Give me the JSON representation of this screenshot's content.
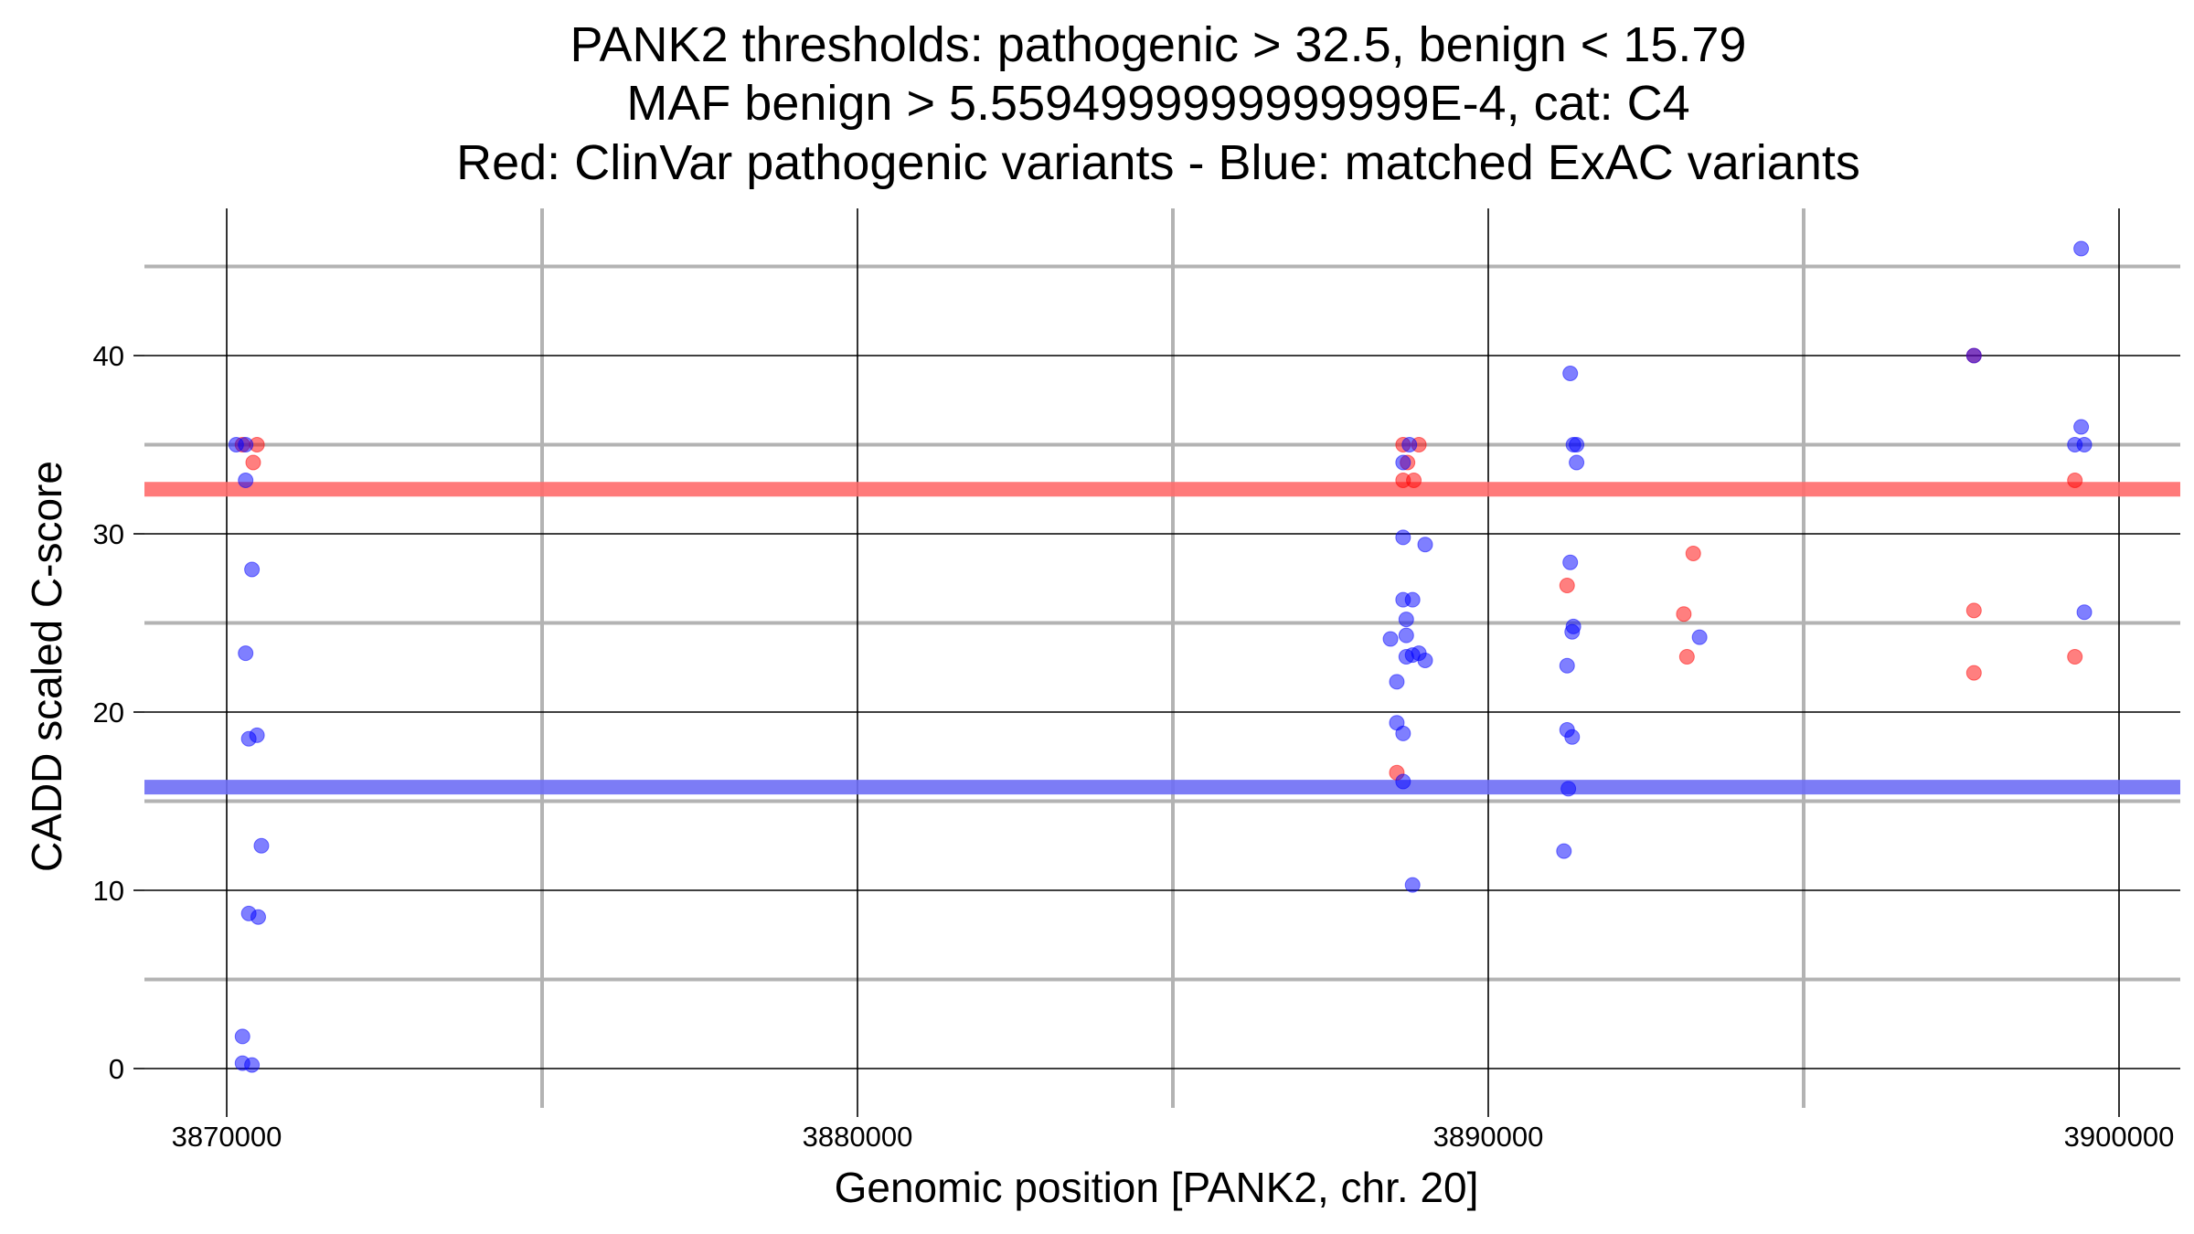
{
  "chart_data": {
    "type": "scatter",
    "title": [
      "PANK2 thresholds: pathogenic > 32.5, benign < 15.79",
      "MAF benign > 5.5594999999999999E-4, cat: C4",
      "Red: ClinVar pathogenic variants - Blue: matched ExAC variants"
    ],
    "xlabel": "Genomic position [PANK2, chr. 20]",
    "ylabel": "CADD scaled C-score",
    "xlim": [
      3869000,
      3901000
    ],
    "ylim": [
      -2.2,
      47.5
    ],
    "x_ticks": [
      3870000,
      3880000,
      3890000,
      3900000
    ],
    "x_tick_labels": [
      "3870000",
      "3880000",
      "3890000",
      "3900000"
    ],
    "y_ticks": [
      0,
      10,
      20,
      30,
      40
    ],
    "y_tick_labels": [
      "0",
      "10",
      "20",
      "30",
      "40"
    ],
    "x_minor_grid": [
      3875000,
      3885000,
      3895000
    ],
    "y_minor_grid": [
      5,
      15,
      25,
      35,
      45
    ],
    "grid": true,
    "thresholds": [
      {
        "name": "pathogenic",
        "value": 32.5,
        "color": "#ff6b6b"
      },
      {
        "name": "benign",
        "value": 15.79,
        "color": "#6e6ef5"
      }
    ],
    "series": [
      {
        "name": "ClinVar pathogenic variants",
        "color": "#ff0000",
        "points": [
          {
            "x": 3870250,
            "y": 35
          },
          {
            "x": 3870480,
            "y": 35
          },
          {
            "x": 3870420,
            "y": 34
          },
          {
            "x": 3888650,
            "y": 35
          },
          {
            "x": 3888900,
            "y": 35
          },
          {
            "x": 3888720,
            "y": 34
          },
          {
            "x": 3888650,
            "y": 33
          },
          {
            "x": 3888820,
            "y": 33
          },
          {
            "x": 3888550,
            "y": 16.6
          },
          {
            "x": 3891250,
            "y": 27.1
          },
          {
            "x": 3893100,
            "y": 25.5
          },
          {
            "x": 3893150,
            "y": 23.1
          },
          {
            "x": 3893250,
            "y": 28.9
          },
          {
            "x": 3897700,
            "y": 40
          },
          {
            "x": 3897700,
            "y": 25.7
          },
          {
            "x": 3897700,
            "y": 22.2
          },
          {
            "x": 3899300,
            "y": 33
          },
          {
            "x": 3899300,
            "y": 23.1
          }
        ]
      },
      {
        "name": "matched ExAC variants",
        "color": "#0000ff",
        "points": [
          {
            "x": 3870150,
            "y": 35
          },
          {
            "x": 3870300,
            "y": 35
          },
          {
            "x": 3870300,
            "y": 33
          },
          {
            "x": 3870400,
            "y": 28
          },
          {
            "x": 3870300,
            "y": 23.3
          },
          {
            "x": 3870350,
            "y": 18.5
          },
          {
            "x": 3870480,
            "y": 18.7
          },
          {
            "x": 3870550,
            "y": 12.5
          },
          {
            "x": 3870350,
            "y": 8.7
          },
          {
            "x": 3870500,
            "y": 8.5
          },
          {
            "x": 3870250,
            "y": 1.8
          },
          {
            "x": 3870250,
            "y": 0.3
          },
          {
            "x": 3870400,
            "y": 0.2
          },
          {
            "x": 3888750,
            "y": 35
          },
          {
            "x": 3888650,
            "y": 34
          },
          {
            "x": 3888650,
            "y": 29.8
          },
          {
            "x": 3889000,
            "y": 29.4
          },
          {
            "x": 3888650,
            "y": 26.3
          },
          {
            "x": 3888800,
            "y": 26.3
          },
          {
            "x": 3888700,
            "y": 25.2
          },
          {
            "x": 3888700,
            "y": 24.3
          },
          {
            "x": 3888450,
            "y": 24.1
          },
          {
            "x": 3888700,
            "y": 23.1
          },
          {
            "x": 3888800,
            "y": 23.2
          },
          {
            "x": 3888900,
            "y": 23.3
          },
          {
            "x": 3889000,
            "y": 22.9
          },
          {
            "x": 3888550,
            "y": 21.7
          },
          {
            "x": 3888550,
            "y": 19.4
          },
          {
            "x": 3888650,
            "y": 18.8
          },
          {
            "x": 3888650,
            "y": 16.1
          },
          {
            "x": 3888800,
            "y": 10.3
          },
          {
            "x": 3891300,
            "y": 39
          },
          {
            "x": 3891350,
            "y": 35
          },
          {
            "x": 3891400,
            "y": 35
          },
          {
            "x": 3891400,
            "y": 34
          },
          {
            "x": 3891300,
            "y": 28.4
          },
          {
            "x": 3891350,
            "y": 24.8
          },
          {
            "x": 3891330,
            "y": 24.5
          },
          {
            "x": 3891250,
            "y": 22.6
          },
          {
            "x": 3891250,
            "y": 19
          },
          {
            "x": 3891330,
            "y": 18.6
          },
          {
            "x": 3891270,
            "y": 15.7
          },
          {
            "x": 3891200,
            "y": 12.2
          },
          {
            "x": 3893350,
            "y": 24.2
          },
          {
            "x": 3897700,
            "y": 40
          },
          {
            "x": 3899400,
            "y": 46
          },
          {
            "x": 3899400,
            "y": 36
          },
          {
            "x": 3899300,
            "y": 35
          },
          {
            "x": 3899450,
            "y": 35
          },
          {
            "x": 3899450,
            "y": 25.6
          }
        ]
      }
    ]
  }
}
